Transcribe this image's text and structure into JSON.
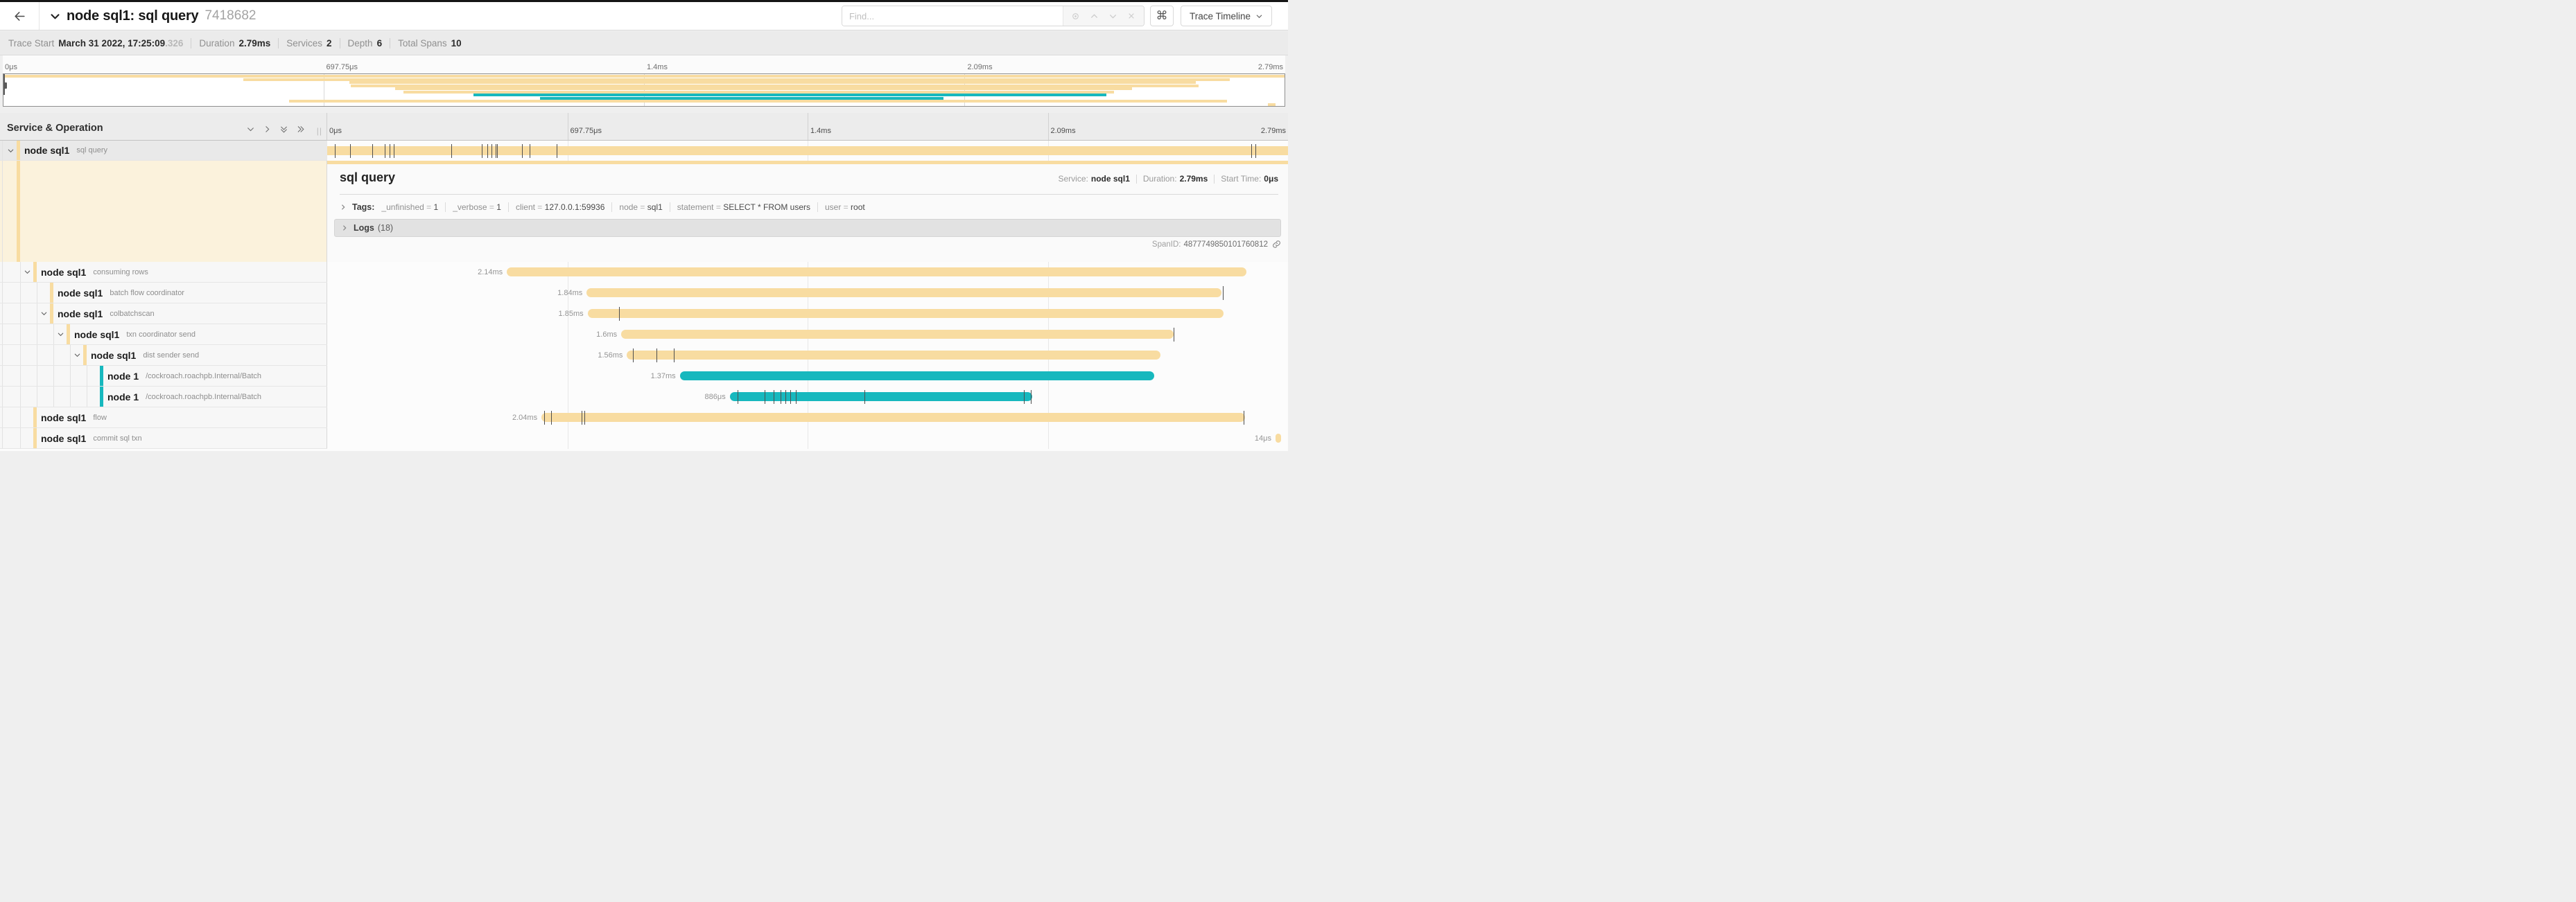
{
  "header": {
    "title": "node sql1: sql query",
    "trace_id": "7418682",
    "find_placeholder": "Find...",
    "shortcut_button": "⌘",
    "view_switcher": "Trace Timeline"
  },
  "trace_info": {
    "items": [
      {
        "label": "Trace Start",
        "value": "March 31 2022, 17:25:09",
        "suffix": ".326"
      },
      {
        "label": "Duration",
        "value": "2.79ms"
      },
      {
        "label": "Services",
        "value": "2"
      },
      {
        "label": "Depth",
        "value": "6"
      },
      {
        "label": "Total Spans",
        "value": "10"
      }
    ]
  },
  "timeline_ticks": [
    "0μs",
    "697.75μs",
    "1.4ms",
    "2.09ms",
    "2.79ms"
  ],
  "left_header": {
    "title": "Service & Operation"
  },
  "colors": {
    "tan": "#F8DCA1",
    "teal": "#17B8BE"
  },
  "spans": [
    {
      "service": "node sql1",
      "operation": "sql query",
      "depth": 0,
      "expander": true,
      "selected": true,
      "color": "#F8DCA1",
      "bar": {
        "start": 0,
        "end": 100,
        "label": "",
        "square": true,
        "ticks": [
          0.8,
          2.4,
          4.7,
          6.0,
          6.5,
          6.9,
          12.9,
          16.1,
          16.7,
          17.1,
          17.5,
          17.7,
          20.3,
          21.1,
          23.9,
          96.2,
          96.6
        ]
      }
    },
    {
      "service": "node sql1",
      "operation": "consuming rows",
      "depth": 1,
      "expander": true,
      "color": "#F8DCA1",
      "bar": {
        "start": 18.7,
        "end": 95.7,
        "label": "2.14ms",
        "ticks": []
      }
    },
    {
      "service": "node sql1",
      "operation": "batch flow coordinator",
      "depth": 2,
      "expander": false,
      "color": "#F8DCA1",
      "bar": {
        "start": 27.0,
        "end": 93.1,
        "label": "1.84ms",
        "ticks": [
          93.2
        ]
      }
    },
    {
      "service": "node sql1",
      "operation": "colbatchscan",
      "depth": 2,
      "expander": true,
      "color": "#F8DCA1",
      "bar": {
        "start": 27.1,
        "end": 93.3,
        "label": "1.85ms",
        "ticks": [
          30.4
        ]
      }
    },
    {
      "service": "node sql1",
      "operation": "txn coordinator send",
      "depth": 3,
      "expander": true,
      "color": "#F8DCA1",
      "bar": {
        "start": 30.6,
        "end": 88.1,
        "label": "1.6ms",
        "ticks": [
          88.1
        ]
      }
    },
    {
      "service": "node sql1",
      "operation": "dist sender send",
      "depth": 4,
      "expander": true,
      "color": "#F8DCA1",
      "bar": {
        "start": 31.2,
        "end": 86.7,
        "label": "1.56ms",
        "ticks": [
          31.8,
          34.3,
          36.1
        ]
      }
    },
    {
      "service": "node 1",
      "operation": "/cockroach.roachpb.Internal/Batch",
      "depth": 5,
      "expander": false,
      "color": "#17B8BE",
      "bar": {
        "start": 36.7,
        "end": 86.1,
        "label": "1.37ms",
        "ticks": []
      }
    },
    {
      "service": "node 1",
      "operation": "/cockroach.roachpb.Internal/Batch",
      "depth": 5,
      "expander": false,
      "color": "#17B8BE",
      "bar": {
        "start": 41.9,
        "end": 73.4,
        "label": "886μs",
        "ticks": [
          42.7,
          45.5,
          46.5,
          47.2,
          47.7,
          48.2,
          48.8,
          55.9,
          72.5,
          73.2
        ]
      }
    },
    {
      "service": "node sql1",
      "operation": "flow",
      "depth": 1,
      "expander": false,
      "color": "#F8DCA1",
      "bar": {
        "start": 22.3,
        "end": 95.5,
        "label": "2.04ms",
        "ticks": [
          22.6,
          23.3,
          26.5,
          26.8,
          95.4
        ]
      }
    },
    {
      "service": "node sql1",
      "operation": "commit sql txn",
      "depth": 1,
      "expander": false,
      "color": "#F8DCA1",
      "bar": {
        "start": 98.7,
        "end": 99.3,
        "label": "14μs",
        "ticks": []
      }
    }
  ],
  "detail": {
    "operation": "sql query",
    "service_label": "Service:",
    "service": "node sql1",
    "duration_label": "Duration:",
    "duration": "2.79ms",
    "start_label": "Start Time:",
    "start": "0μs",
    "tags_label": "Tags:",
    "tags": [
      {
        "key": "_unfinished",
        "value": "1"
      },
      {
        "key": "_verbose",
        "value": "1"
      },
      {
        "key": "client",
        "value": "127.0.0.1:59936"
      },
      {
        "key": "node",
        "value": "sql1"
      },
      {
        "key": "statement",
        "value": "SELECT * FROM users"
      },
      {
        "key": "user",
        "value": "root"
      }
    ],
    "logs_label": "Logs",
    "logs_count": "(18)",
    "spanid_label": "SpanID:",
    "spanid_value": "4877749850101760812"
  }
}
